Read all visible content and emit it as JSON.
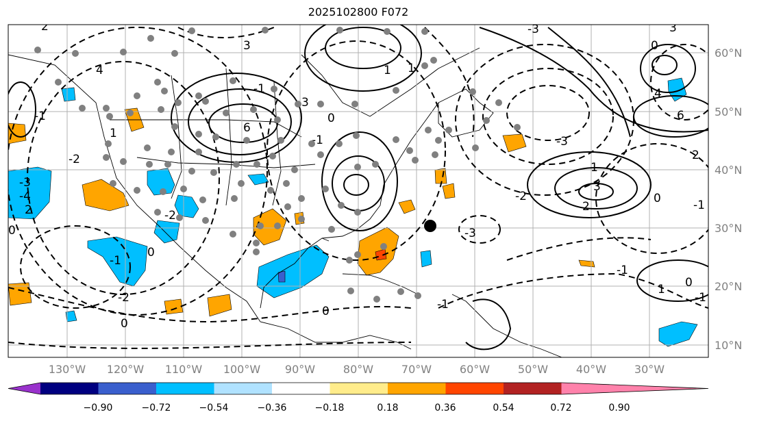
{
  "title": "2025102800 F072",
  "map": {
    "lon_ticks": [
      "130°W",
      "120°W",
      "110°W",
      "100°W",
      "90°W",
      "80°W",
      "70°W",
      "60°W",
      "50°W",
      "40°W",
      "30°W"
    ],
    "lat_ticks": [
      "60°N",
      "50°N",
      "40°N",
      "30°N",
      "20°N",
      "10°N"
    ],
    "grid": true,
    "contour_labels": [
      "2",
      "4",
      "3",
      "1",
      "-2",
      "-3",
      "-4",
      "2",
      "3",
      "-1",
      "0",
      "6",
      "4",
      "6",
      "3",
      "2",
      "1",
      "3",
      "-3",
      "-2",
      "-1",
      "0",
      "-1",
      "0",
      "-3",
      "-2",
      "-1",
      "1",
      "-2",
      "0",
      "1",
      "0",
      "-1",
      "-1",
      "0",
      "-1",
      "0",
      "-3",
      "2",
      "1",
      "-1",
      "0"
    ]
  },
  "colorbar": {
    "ticks": [
      "−0.90",
      "−0.72",
      "−0.54",
      "−0.36",
      "−0.18",
      "0.18",
      "0.36",
      "0.54",
      "0.72",
      "0.90"
    ],
    "colors": [
      "#9932cc",
      "#000080",
      "#3a5fcd",
      "#00bfff",
      "#b0e2ff",
      "#ffffff",
      "#ffec8b",
      "#ffa500",
      "#ff4500",
      "#b22222",
      "#ff82ab"
    ]
  },
  "colors": {
    "positive_fill": "#ffa500",
    "negative_fill": "#00bfff",
    "station_dot": "#808080",
    "marker": "#000000",
    "grid": "#b0b0b0"
  }
}
